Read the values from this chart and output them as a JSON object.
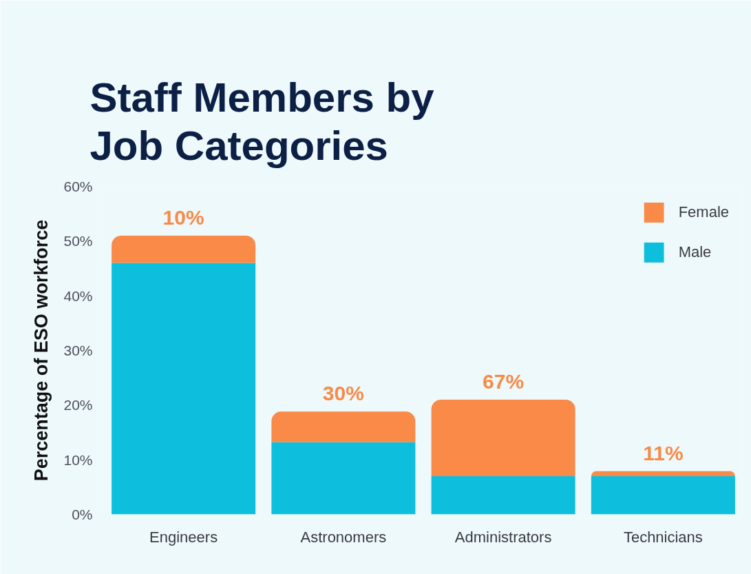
{
  "chart_data": {
    "type": "bar",
    "title": "Staff Members by Job Categories",
    "ylabel": "Percentage of ESO workforce",
    "categories": [
      "Engineers",
      "Astronomers",
      "Administrators",
      "Technicians"
    ],
    "stacked": true,
    "series": [
      {
        "name": "Male",
        "color": "#0ebfdd",
        "values": [
          46,
          13.2,
          7,
          7
        ]
      },
      {
        "name": "Female",
        "color": "#f98a48",
        "values": [
          5,
          5.6,
          14,
          0.9
        ]
      }
    ],
    "ylim": [
      0,
      60
    ],
    "yticks": [
      {
        "value": 0,
        "label": "0%"
      },
      {
        "value": 10,
        "label": "10%"
      },
      {
        "value": 20,
        "label": "20%"
      },
      {
        "value": 30,
        "label": "30%"
      },
      {
        "value": 40,
        "label": "40%"
      },
      {
        "value": 50,
        "label": "50%"
      },
      {
        "value": 60,
        "label": "60%"
      }
    ],
    "legend": "top right",
    "annotations": [
      {
        "text": "10%",
        "x": "Engineers",
        "y": 51
      },
      {
        "text": "30%",
        "x": "Astronomers",
        "y": 18.8
      },
      {
        "text": "67%",
        "x": "Administrators",
        "y": 21
      },
      {
        "text": "11%",
        "x": "Technicians",
        "y": 7.9
      }
    ]
  }
}
